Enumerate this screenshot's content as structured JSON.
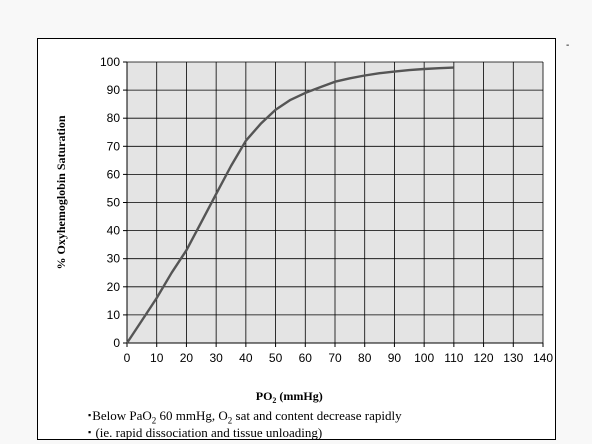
{
  "chart_data": {
    "type": "line",
    "xlabel": "PO2 (mmHg)",
    "ylabel": "% Oxyhemoglobin Saturation",
    "xlim": [
      0,
      140
    ],
    "ylim": [
      0,
      100
    ],
    "xticks": [
      "0",
      "10",
      "20",
      "30",
      "40",
      "50",
      "60",
      "70",
      "80",
      "90",
      "100",
      "110",
      "120",
      "130",
      "140"
    ],
    "yticks": [
      "0",
      "10",
      "20",
      "30",
      "40",
      "50",
      "60",
      "70",
      "80",
      "90",
      "100"
    ],
    "grid": true,
    "series": [
      {
        "x": [
          0,
          5,
          10,
          15,
          20,
          25,
          30,
          35,
          40,
          45,
          50,
          55,
          60,
          65,
          70,
          75,
          80,
          85,
          90,
          95,
          100,
          105,
          110
        ],
        "y": [
          0,
          8,
          16,
          25,
          33,
          43,
          53,
          63,
          72,
          78,
          83,
          86.5,
          89,
          91,
          93,
          94.2,
          95.2,
          96,
          96.6,
          97.1,
          97.5,
          97.8,
          98
        ],
        "color": "#555555"
      }
    ],
    "colors": {
      "plot_bg": "#e4e4e4",
      "line": "#555555",
      "grid": "#000000"
    }
  },
  "axis": {
    "y_title": "% Oxyhemoglobin Saturation",
    "x_title_main": "PO",
    "x_title_sub": "2",
    "x_title_unit": " (mmHg)"
  },
  "notes": {
    "line1": {
      "bullet": "▪",
      "t1": "Below PaO",
      "s1": "2",
      "t2": " 60 mmHg, O",
      "s2": "2",
      "t3": " sat and content decrease rapidly"
    },
    "line2": {
      "bullet": "▪",
      "text": " (ie. rapid dissociation and tissue unloading)"
    }
  },
  "corner_mark": "-"
}
